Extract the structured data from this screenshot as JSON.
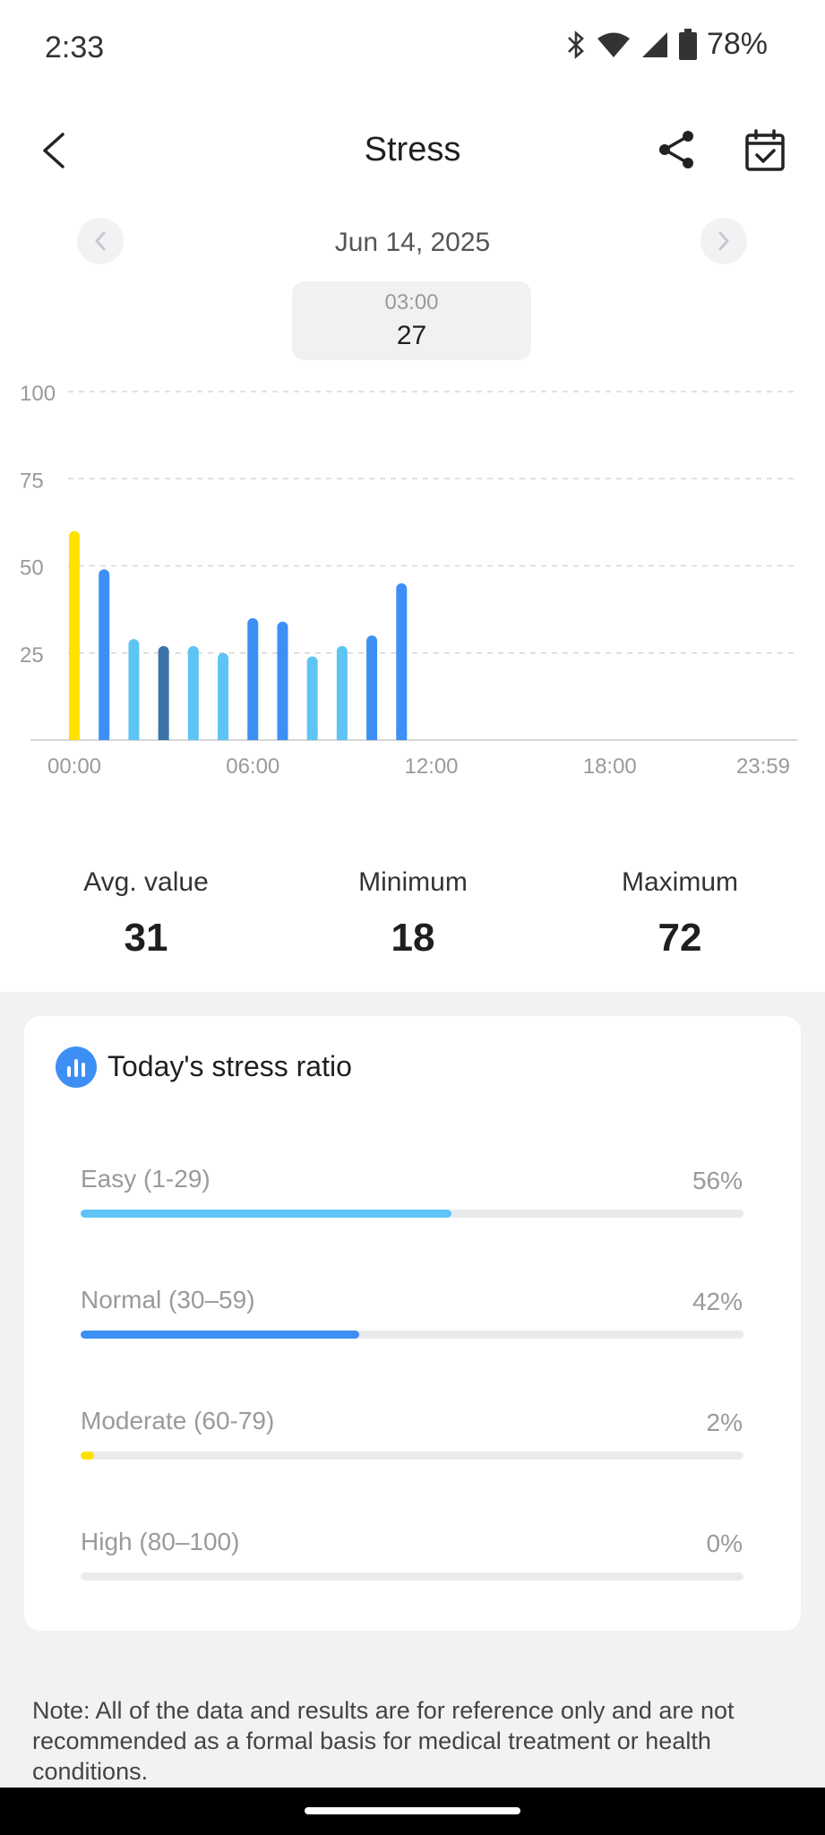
{
  "status": {
    "time": "2:33",
    "battery": "78%"
  },
  "header": {
    "title": "Stress"
  },
  "date_nav": {
    "date": "Jun 14, 2025"
  },
  "tooltip": {
    "time": "03:00",
    "value": "27"
  },
  "chart_data": {
    "type": "bar",
    "y_ticks": [
      "100",
      "75",
      "50",
      "25"
    ],
    "x_ticks": [
      "00:00",
      "06:00",
      "12:00",
      "18:00",
      "23:59"
    ],
    "ylim": [
      0,
      100
    ],
    "grid": true,
    "hours": [
      0,
      1,
      2,
      3,
      4,
      5,
      6,
      7,
      8,
      9,
      10,
      11
    ],
    "values": [
      60,
      49,
      29,
      27,
      27,
      25,
      35,
      34,
      24,
      27,
      30,
      45
    ],
    "colors": [
      "#ffe100",
      "#3d8ff5",
      "#5ec4f4",
      "#3a73a8",
      "#5ec4f4",
      "#5ec4f4",
      "#3d8ff5",
      "#3d8ff5",
      "#5ec4f4",
      "#5ec4f4",
      "#3d8ff5",
      "#3d8ff5"
    ]
  },
  "stats": [
    {
      "label": "Avg. value",
      "value": "31"
    },
    {
      "label": "Minimum",
      "value": "18"
    },
    {
      "label": "Maximum",
      "value": "72"
    }
  ],
  "ratio": {
    "title": "Today's stress ratio",
    "items": [
      {
        "label": "Easy (1-29)",
        "pct": "56%",
        "fraction": 0.56,
        "color": "#5ec4f4"
      },
      {
        "label": "Normal (30–59)",
        "pct": "42%",
        "fraction": 0.42,
        "color": "#3d8ff5"
      },
      {
        "label": "Moderate (60-79)",
        "pct": "2%",
        "fraction": 0.02,
        "color": "#ffe100"
      },
      {
        "label": "High (80–100)",
        "pct": "0%",
        "fraction": 0.0,
        "color": "#ff7a45"
      }
    ]
  },
  "note": "Note: All of the data and results are for reference only and are not recommended as a formal basis for medical treatment or health conditions."
}
